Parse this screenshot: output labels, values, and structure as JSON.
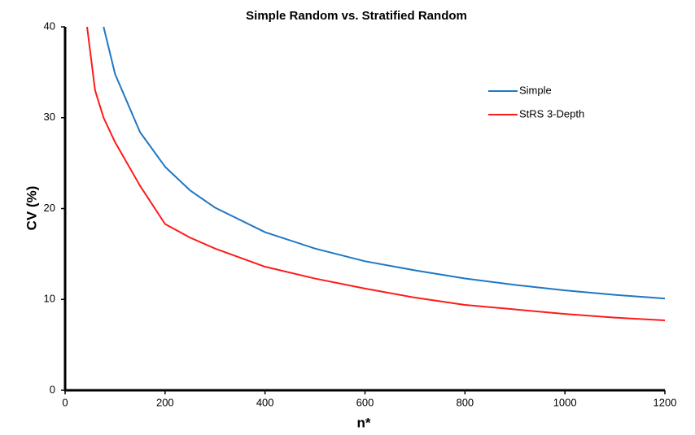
{
  "chart_data": {
    "type": "line",
    "title": "Simple Random vs. Stratified Random",
    "x_label": "n*",
    "y_label": "CV (%)",
    "x": [
      44,
      60,
      77,
      100,
      150,
      200,
      250,
      300,
      400,
      500,
      600,
      700,
      800,
      900,
      1000,
      1100,
      1200
    ],
    "series": [
      {
        "name": "Simple",
        "color": "#1f77c4",
        "values": [
          null,
          null,
          40,
          34.8,
          28.4,
          24.6,
          22.0,
          20.1,
          17.4,
          15.6,
          14.2,
          13.2,
          12.3,
          11.6,
          11.0,
          10.5,
          10.1
        ]
      },
      {
        "name": "StRS 3-Depth",
        "color": "#ff1a1a",
        "values": [
          40,
          33,
          30,
          27.3,
          22.5,
          18.3,
          16.8,
          15.6,
          13.6,
          12.3,
          11.2,
          10.2,
          9.4,
          8.9,
          8.4,
          8.0,
          7.7
        ]
      }
    ],
    "xlim": [
      0,
      1200
    ],
    "xticks": [
      0,
      200,
      400,
      600,
      800,
      1000,
      1200
    ],
    "ylim": [
      0,
      40
    ],
    "yticks": [
      0,
      10,
      20,
      30,
      40
    ],
    "grid": false,
    "legend": "upper right"
  }
}
